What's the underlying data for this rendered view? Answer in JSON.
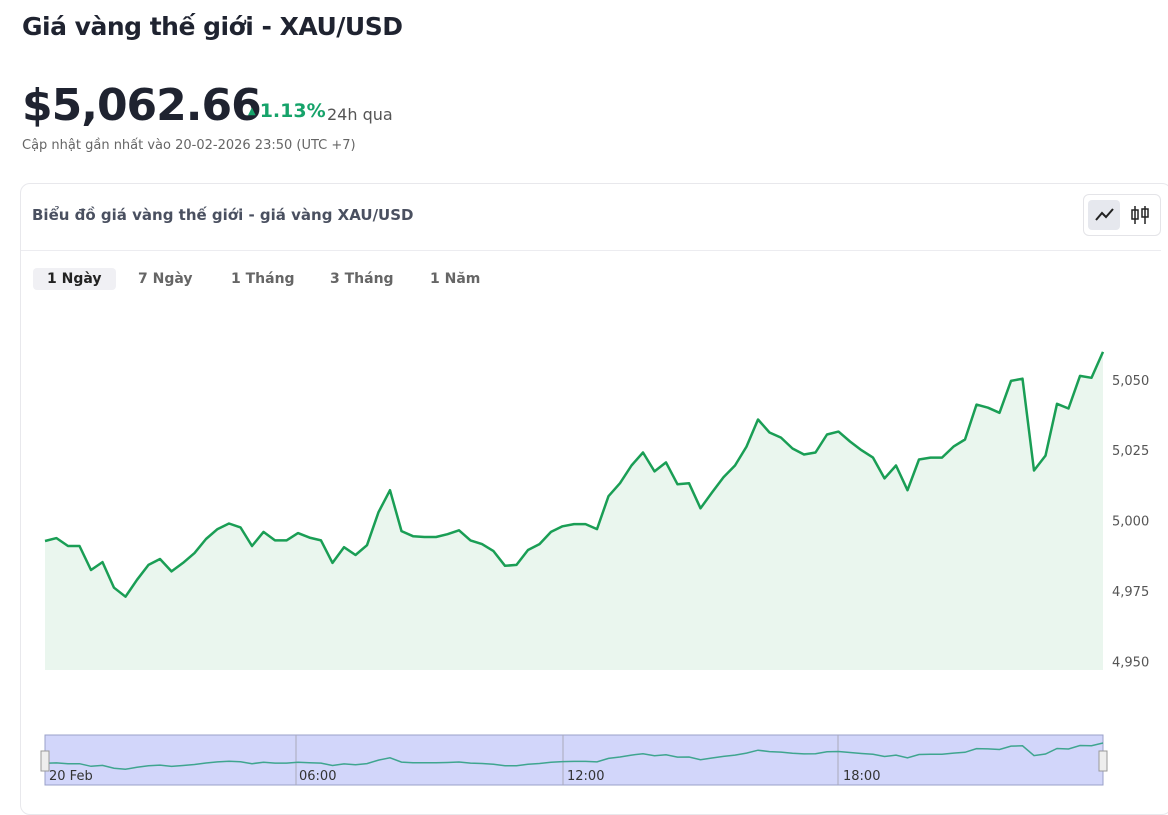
{
  "header": {
    "title": "Giá vàng thế giới - XAU/USD",
    "price": "$5,062.66",
    "change": "1.13%",
    "period": "24h qua",
    "updated": "Cập nhật gần nhất vào 20-02-2026 23:50 (UTC +7)"
  },
  "card_title": "Biểu đồ giá vàng thế giới - giá vàng XAU/USD",
  "tabs": [
    "1 Ngày",
    "7 Ngày",
    "1 Tháng",
    "3 Tháng",
    "1 Năm"
  ],
  "chart_data": {
    "type": "line",
    "color": "#1a9e55",
    "fill": "#eaf6ee",
    "values": [
      4992.8,
      4993.8,
      4991,
      4991,
      4982.5,
      4985.3,
      4976.2,
      4973,
      4979,
      4984.3,
      4986.4,
      4982,
      4985,
      4988.5,
      4993.5,
      4997,
      4999,
      4997.6,
      4991,
      4996,
      4993,
      4993,
      4995.6,
      4994,
      4993,
      4985,
      4990.6,
      4987.8,
      4991.3,
      5003,
      5010.8,
      4996.3,
      4994.5,
      4994.2,
      4994.2,
      4995.2,
      4996.6,
      4993,
      4991.7,
      4989.2,
      4984,
      4984.3,
      4989.6,
      4991.7,
      4996,
      4998,
      4998.8,
      4998.8,
      4997,
      5008.7,
      5013.3,
      5019.6,
      5024.2,
      5017.5,
      5020.7,
      5012.9,
      5013.3,
      5004.4,
      5010,
      5015.4,
      5019.6,
      5026.3,
      5035.9,
      5031.3,
      5029.5,
      5025.6,
      5023.5,
      5024.2,
      5030.6,
      5031.6,
      5028.1,
      5025,
      5022.4,
      5015,
      5019.6,
      5010.8,
      5021.7,
      5022.4,
      5022.4,
      5026.3,
      5028.8,
      5041.2,
      5040.1,
      5038.3,
      5049.6,
      5050.4,
      5017.8,
      5023.1,
      5041.5,
      5039.8,
      5051.4,
      5050.7,
      5059.9
    ],
    "ylim": [
      4947,
      5073
    ],
    "yticks": [
      {
        "value": 4950,
        "label": "4,950"
      },
      {
        "value": 4975,
        "label": "4,975"
      },
      {
        "value": 5000,
        "label": "5,000"
      },
      {
        "value": 5025,
        "label": "5,025"
      },
      {
        "value": 5050,
        "label": "5,050"
      }
    ],
    "navigator_labels": [
      "20 Feb",
      "06:00",
      "12:00",
      "18:00"
    ]
  }
}
